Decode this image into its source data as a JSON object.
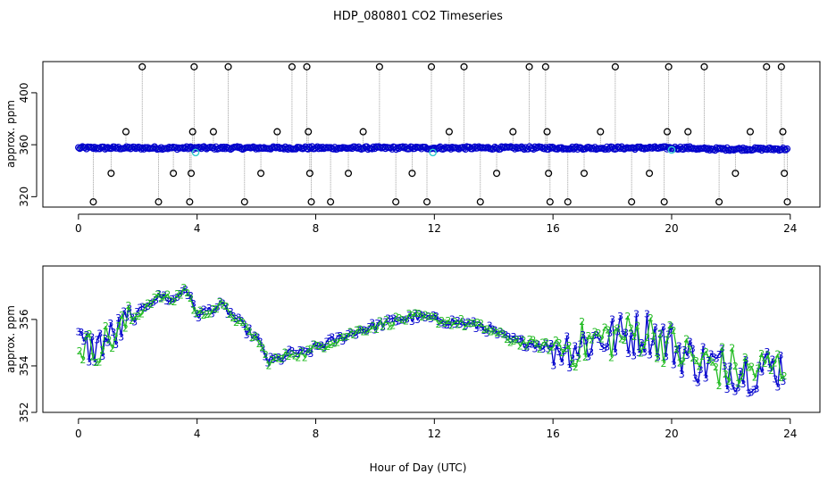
{
  "colors": {
    "background": "#ffffff",
    "axis": "#000000",
    "outlier": "#000000",
    "series_blue": "#0000cc",
    "series_green": "#22bb22",
    "series_cyan": "#33cccc",
    "connector_gray": "#888888"
  },
  "chart_data": [
    {
      "type": "scatter",
      "title": "HDP_080801  CO2 Timeseries",
      "xlabel": "",
      "ylabel": "approx. ppm",
      "xlim": [
        -1.2,
        25
      ],
      "ylim": [
        312,
        424
      ],
      "xticks": [
        0,
        4,
        8,
        12,
        16,
        20,
        24
      ],
      "yticks": [
        320,
        360,
        400
      ],
      "outlier_levels": [
        316,
        338,
        370,
        420
      ],
      "outliers": [
        [
          0.5,
          316
        ],
        [
          1.1,
          338
        ],
        [
          1.6,
          370
        ],
        [
          2.15,
          420
        ],
        [
          2.7,
          316
        ],
        [
          3.2,
          338
        ],
        [
          3.75,
          316
        ],
        [
          3.8,
          338
        ],
        [
          3.85,
          370
        ],
        [
          3.9,
          420
        ],
        [
          4.55,
          370
        ],
        [
          5.05,
          420
        ],
        [
          5.6,
          316
        ],
        [
          6.15,
          338
        ],
        [
          6.7,
          370
        ],
        [
          7.2,
          420
        ],
        [
          7.7,
          420
        ],
        [
          7.75,
          370
        ],
        [
          7.8,
          338
        ],
        [
          7.85,
          316
        ],
        [
          8.5,
          316
        ],
        [
          9.1,
          338
        ],
        [
          9.6,
          370
        ],
        [
          10.15,
          420
        ],
        [
          10.7,
          316
        ],
        [
          11.25,
          338
        ],
        [
          11.75,
          316
        ],
        [
          11.9,
          420
        ],
        [
          12.5,
          370
        ],
        [
          13.0,
          420
        ],
        [
          13.55,
          316
        ],
        [
          14.1,
          338
        ],
        [
          14.65,
          370
        ],
        [
          15.2,
          420
        ],
        [
          15.75,
          420
        ],
        [
          15.8,
          370
        ],
        [
          15.85,
          338
        ],
        [
          15.9,
          316
        ],
        [
          16.5,
          316
        ],
        [
          17.05,
          338
        ],
        [
          17.6,
          370
        ],
        [
          18.1,
          420
        ],
        [
          18.65,
          316
        ],
        [
          19.25,
          338
        ],
        [
          19.75,
          316
        ],
        [
          19.85,
          370
        ],
        [
          19.9,
          420
        ],
        [
          20.55,
          370
        ],
        [
          21.1,
          420
        ],
        [
          21.6,
          316
        ],
        [
          22.15,
          338
        ],
        [
          22.65,
          370
        ],
        [
          23.2,
          420
        ],
        [
          23.7,
          420
        ],
        [
          23.75,
          370
        ],
        [
          23.8,
          338
        ],
        [
          23.9,
          316
        ]
      ]
    },
    {
      "type": "line",
      "title": "",
      "xlabel": "Hour of Day (UTC)",
      "ylabel": "approx. ppm",
      "xlim": [
        -1.2,
        25
      ],
      "ylim": [
        352,
        358.3
      ],
      "xticks": [
        0,
        4,
        8,
        12,
        16,
        20,
        24
      ],
      "yticks": [
        352,
        354,
        356
      ],
      "series": [
        {
          "name": "3",
          "marker": "3"
        },
        {
          "name": "2",
          "marker": "2"
        }
      ],
      "trend": {
        "x": [
          0,
          0.4,
          0.8,
          1.2,
          1.6,
          2.0,
          2.4,
          2.8,
          3.2,
          3.6,
          4.0,
          4.4,
          4.8,
          5.2,
          5.6,
          6.0,
          6.4,
          6.8,
          7.2,
          7.6,
          8.0,
          8.4,
          9.0,
          9.6,
          10.2,
          10.8,
          11.4,
          12.0,
          12.6,
          13.2,
          13.8,
          14.4,
          15.0,
          15.6,
          16.0,
          16.8,
          17.6,
          18.4,
          19.2,
          20.0,
          20.8,
          21.6,
          22.4,
          23.2,
          23.8
        ],
        "y": [
          355.0,
          354.7,
          355.0,
          355.3,
          355.8,
          356.2,
          356.8,
          357.0,
          356.8,
          357.4,
          356.2,
          356.4,
          356.6,
          356.2,
          355.6,
          355.2,
          354.2,
          354.3,
          354.6,
          354.5,
          354.8,
          355.0,
          355.3,
          355.6,
          355.8,
          356.0,
          356.1,
          356.0,
          355.9,
          355.8,
          355.6,
          355.2,
          355.0,
          354.9,
          354.8,
          354.9,
          355.2,
          355.3,
          355.5,
          354.9,
          354.2,
          354.0,
          353.8,
          353.9,
          354.0
        ]
      },
      "noise_amplitude": [
        {
          "from": 0,
          "to": 1.8,
          "amp": 0.8
        },
        {
          "from": 1.8,
          "to": 16,
          "amp": 0.2
        },
        {
          "from": 16,
          "to": 24,
          "amp": 1.0
        }
      ]
    }
  ]
}
